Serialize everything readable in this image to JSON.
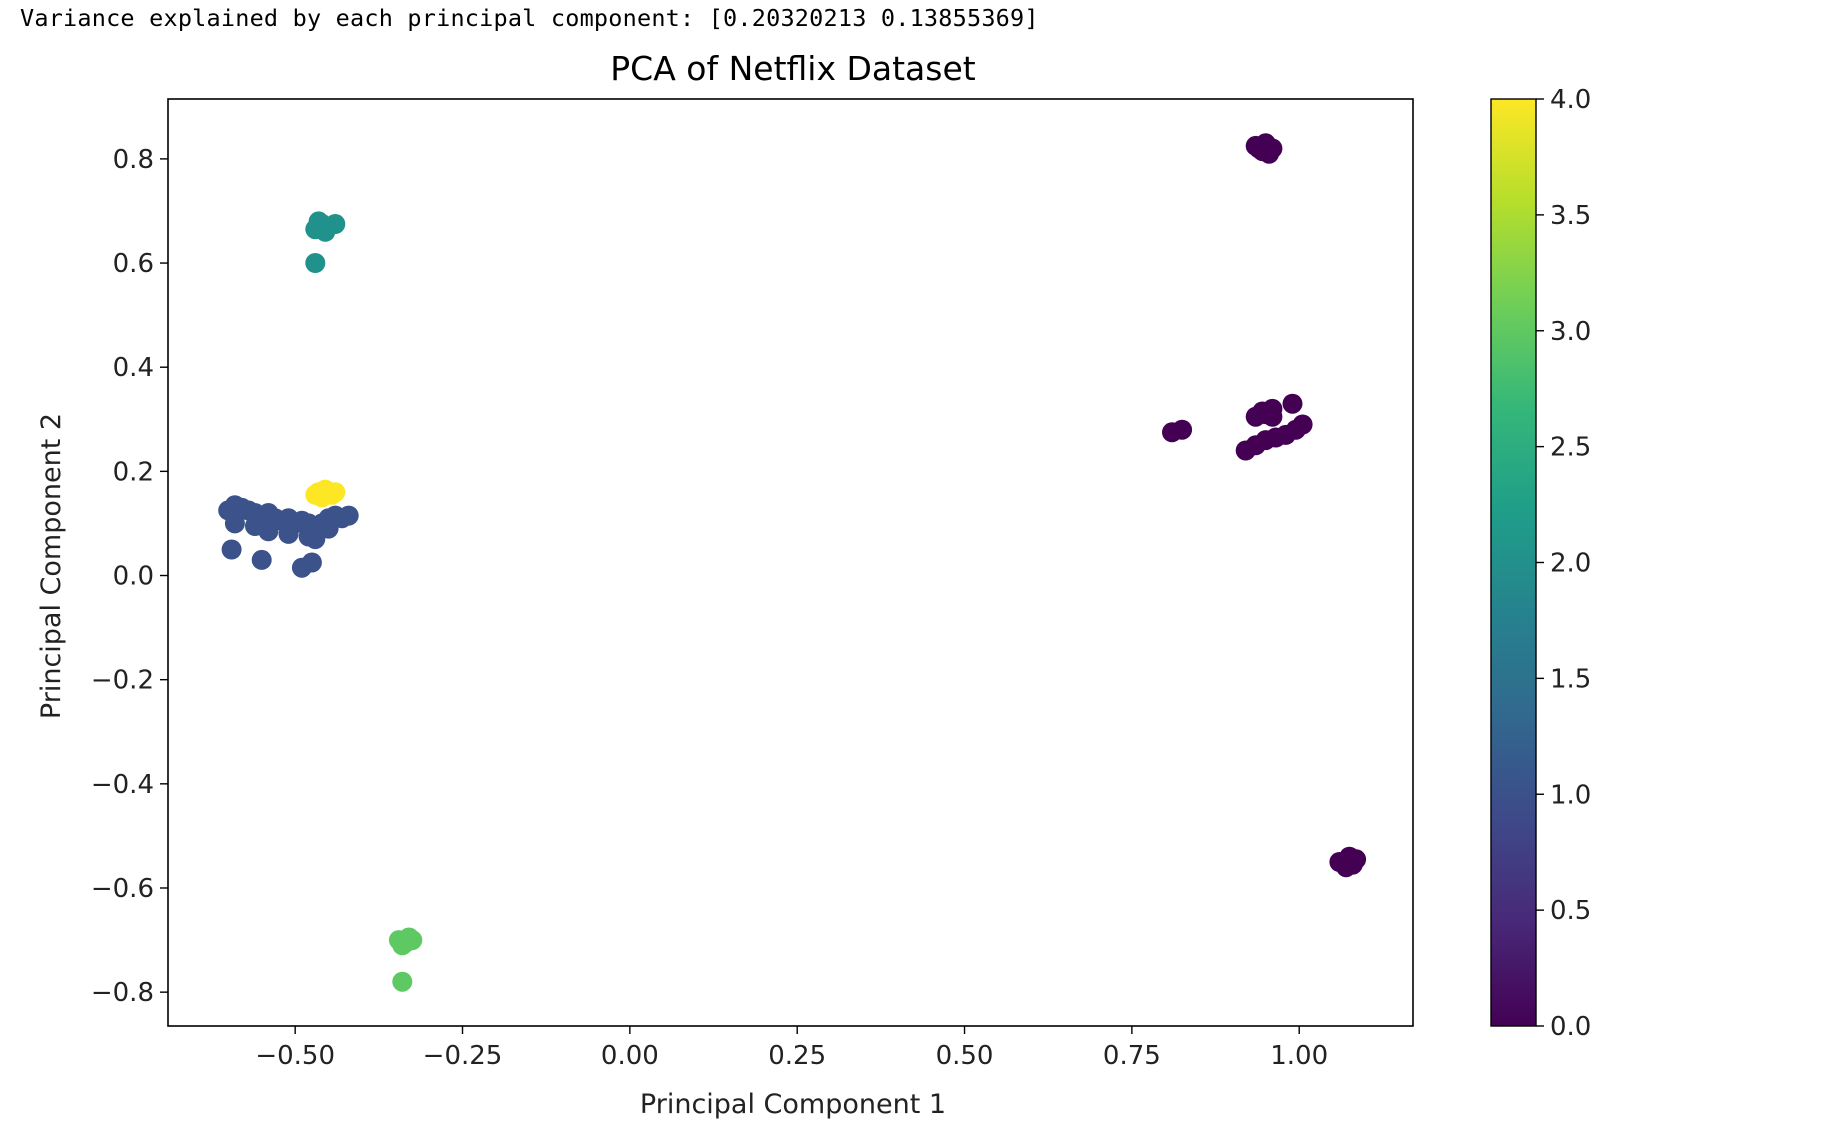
{
  "output": {
    "text": "Variance explained by each principal component: [0.20320213 0.13855369]"
  },
  "chart_data": {
    "type": "scatter",
    "title": "PCA of Netflix Dataset",
    "xlabel": "Principal Component 1",
    "ylabel": "Principal Component 2",
    "xlim": [
      -0.69,
      1.17
    ],
    "ylim": [
      -0.865,
      0.915
    ],
    "xticks": [
      -0.5,
      -0.25,
      0.0,
      0.25,
      0.5,
      0.75,
      1.0
    ],
    "xtick_labels": [
      "−0.50",
      "−0.25",
      "0.00",
      "0.25",
      "0.50",
      "0.75",
      "1.00"
    ],
    "yticks": [
      -0.8,
      -0.6,
      -0.4,
      -0.2,
      0.0,
      0.2,
      0.4,
      0.6,
      0.8
    ],
    "ytick_labels": [
      "−0.8",
      "−0.6",
      "−0.4",
      "−0.2",
      "0.0",
      "0.2",
      "0.4",
      "0.6",
      "0.8"
    ],
    "grid": false,
    "colormap": "viridis",
    "colorbar": {
      "range": [
        0,
        4
      ],
      "ticks": [
        0,
        0.5,
        1,
        1.5,
        2,
        2.5,
        3,
        3.5,
        4
      ],
      "tick_labels": [
        "0.0",
        "0.5",
        "1.0",
        "1.5",
        "2.0",
        "2.5",
        "3.0",
        "3.5",
        "4.0"
      ],
      "stops": [
        "#440154",
        "#482878",
        "#3e4989",
        "#31688e",
        "#26828e",
        "#1f9e89",
        "#35b779",
        "#6ece58",
        "#b5de2b",
        "#fde725"
      ]
    },
    "cluster_colors": {
      "0": "#440154",
      "1": "#3b528b",
      "2": "#21918c",
      "3": "#5ec962",
      "4": "#fde725"
    },
    "points": [
      {
        "x": 0.94,
        "y": 0.82,
        "c": 0
      },
      {
        "x": 0.95,
        "y": 0.83,
        "c": 0
      },
      {
        "x": 0.96,
        "y": 0.82,
        "c": 0
      },
      {
        "x": 0.945,
        "y": 0.815,
        "c": 0
      },
      {
        "x": 0.955,
        "y": 0.81,
        "c": 0
      },
      {
        "x": 0.935,
        "y": 0.825,
        "c": 0
      },
      {
        "x": 0.81,
        "y": 0.275,
        "c": 0
      },
      {
        "x": 0.825,
        "y": 0.28,
        "c": 0
      },
      {
        "x": 0.92,
        "y": 0.24,
        "c": 0
      },
      {
        "x": 0.935,
        "y": 0.25,
        "c": 0
      },
      {
        "x": 0.95,
        "y": 0.26,
        "c": 0
      },
      {
        "x": 0.965,
        "y": 0.265,
        "c": 0
      },
      {
        "x": 0.98,
        "y": 0.27,
        "c": 0
      },
      {
        "x": 0.995,
        "y": 0.28,
        "c": 0
      },
      {
        "x": 1.005,
        "y": 0.29,
        "c": 0
      },
      {
        "x": 0.935,
        "y": 0.305,
        "c": 0
      },
      {
        "x": 0.95,
        "y": 0.31,
        "c": 0
      },
      {
        "x": 0.96,
        "y": 0.32,
        "c": 0
      },
      {
        "x": 0.945,
        "y": 0.315,
        "c": 0
      },
      {
        "x": 0.99,
        "y": 0.33,
        "c": 0
      },
      {
        "x": 0.96,
        "y": 0.305,
        "c": 0
      },
      {
        "x": 1.07,
        "y": -0.55,
        "c": 0
      },
      {
        "x": 1.08,
        "y": -0.555,
        "c": 0
      },
      {
        "x": 1.06,
        "y": -0.55,
        "c": 0
      },
      {
        "x": 1.075,
        "y": -0.54,
        "c": 0
      },
      {
        "x": 1.085,
        "y": -0.545,
        "c": 0
      },
      {
        "x": 1.07,
        "y": -0.56,
        "c": 0
      },
      {
        "x": -0.6,
        "y": 0.125,
        "c": 1
      },
      {
        "x": -0.59,
        "y": 0.135,
        "c": 1
      },
      {
        "x": -0.58,
        "y": 0.13,
        "c": 1
      },
      {
        "x": -0.57,
        "y": 0.125,
        "c": 1
      },
      {
        "x": -0.56,
        "y": 0.12,
        "c": 1
      },
      {
        "x": -0.55,
        "y": 0.115,
        "c": 1
      },
      {
        "x": -0.54,
        "y": 0.12,
        "c": 1
      },
      {
        "x": -0.53,
        "y": 0.11,
        "c": 1
      },
      {
        "x": -0.52,
        "y": 0.105,
        "c": 1
      },
      {
        "x": -0.51,
        "y": 0.11,
        "c": 1
      },
      {
        "x": -0.5,
        "y": 0.1,
        "c": 1
      },
      {
        "x": -0.49,
        "y": 0.105,
        "c": 1
      },
      {
        "x": -0.48,
        "y": 0.1,
        "c": 1
      },
      {
        "x": -0.47,
        "y": 0.095,
        "c": 1
      },
      {
        "x": -0.46,
        "y": 0.1,
        "c": 1
      },
      {
        "x": -0.45,
        "y": 0.11,
        "c": 1
      },
      {
        "x": -0.44,
        "y": 0.115,
        "c": 1
      },
      {
        "x": -0.43,
        "y": 0.11,
        "c": 1
      },
      {
        "x": -0.42,
        "y": 0.115,
        "c": 1
      },
      {
        "x": -0.59,
        "y": 0.1,
        "c": 1
      },
      {
        "x": -0.56,
        "y": 0.095,
        "c": 1
      },
      {
        "x": -0.54,
        "y": 0.085,
        "c": 1
      },
      {
        "x": -0.51,
        "y": 0.08,
        "c": 1
      },
      {
        "x": -0.48,
        "y": 0.075,
        "c": 1
      },
      {
        "x": -0.47,
        "y": 0.07,
        "c": 1
      },
      {
        "x": -0.45,
        "y": 0.09,
        "c": 1
      },
      {
        "x": -0.595,
        "y": 0.05,
        "c": 1
      },
      {
        "x": -0.55,
        "y": 0.03,
        "c": 1
      },
      {
        "x": -0.49,
        "y": 0.015,
        "c": 1
      },
      {
        "x": -0.475,
        "y": 0.025,
        "c": 1
      },
      {
        "x": -0.47,
        "y": 0.665,
        "c": 2
      },
      {
        "x": -0.46,
        "y": 0.675,
        "c": 2
      },
      {
        "x": -0.45,
        "y": 0.67,
        "c": 2
      },
      {
        "x": -0.44,
        "y": 0.675,
        "c": 2
      },
      {
        "x": -0.465,
        "y": 0.68,
        "c": 2
      },
      {
        "x": -0.455,
        "y": 0.66,
        "c": 2
      },
      {
        "x": -0.47,
        "y": 0.6,
        "c": 2
      },
      {
        "x": -0.345,
        "y": -0.7,
        "c": 3
      },
      {
        "x": -0.335,
        "y": -0.705,
        "c": 3
      },
      {
        "x": -0.325,
        "y": -0.7,
        "c": 3
      },
      {
        "x": -0.34,
        "y": -0.71,
        "c": 3
      },
      {
        "x": -0.33,
        "y": -0.695,
        "c": 3
      },
      {
        "x": -0.34,
        "y": -0.78,
        "c": 3
      },
      {
        "x": -0.465,
        "y": 0.16,
        "c": 4
      },
      {
        "x": -0.455,
        "y": 0.165,
        "c": 4
      },
      {
        "x": -0.445,
        "y": 0.155,
        "c": 4
      },
      {
        "x": -0.46,
        "y": 0.15,
        "c": 4
      },
      {
        "x": -0.44,
        "y": 0.16,
        "c": 4
      },
      {
        "x": -0.47,
        "y": 0.155,
        "c": 4
      }
    ]
  }
}
